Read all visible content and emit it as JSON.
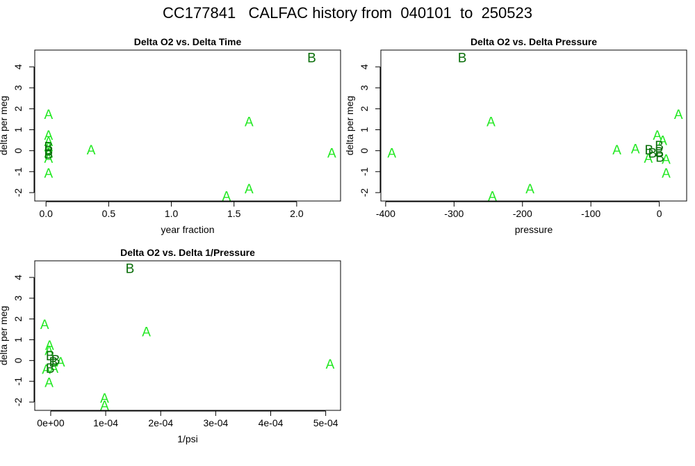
{
  "title": "CC177841   CALFAC history from  040101  to  250523",
  "colors": {
    "A": "#22e822",
    "B": "#0a6e0a"
  },
  "chart_data": [
    {
      "type": "scatter",
      "title": "Delta O2 vs. Delta Time",
      "xlabel": "year fraction",
      "ylabel": "delta per meg",
      "xlim": [
        -0.09,
        2.35
      ],
      "ylim": [
        -2.4,
        4.8
      ],
      "xticks": [
        {
          "v": 0.0,
          "label": "0.0"
        },
        {
          "v": 0.5,
          "label": "0.5"
        },
        {
          "v": 1.0,
          "label": "1.0"
        },
        {
          "v": 1.5,
          "label": "1.5"
        },
        {
          "v": 2.0,
          "label": "2.0"
        }
      ],
      "yticks": [
        {
          "v": -2,
          "label": "-2"
        },
        {
          "v": -1,
          "label": "-1"
        },
        {
          "v": 0,
          "label": "0"
        },
        {
          "v": 1,
          "label": "1"
        },
        {
          "v": 2,
          "label": "2"
        },
        {
          "v": 3,
          "label": "3"
        },
        {
          "v": 4,
          "label": "4"
        }
      ],
      "points": [
        {
          "x": 0.02,
          "y": 1.75,
          "label": "A"
        },
        {
          "x": 0.02,
          "y": 0.75,
          "label": "A"
        },
        {
          "x": 0.02,
          "y": 0.45,
          "label": "A"
        },
        {
          "x": 0.02,
          "y": 0.2,
          "label": "A"
        },
        {
          "x": 0.02,
          "y": -0.1,
          "label": "A"
        },
        {
          "x": 0.02,
          "y": -0.35,
          "label": "A"
        },
        {
          "x": 0.02,
          "y": -1.05,
          "label": "A"
        },
        {
          "x": 0.36,
          "y": 0.05,
          "label": "A"
        },
        {
          "x": 1.62,
          "y": 1.4,
          "label": "A"
        },
        {
          "x": 1.44,
          "y": -2.15,
          "label": "A"
        },
        {
          "x": 1.62,
          "y": -1.8,
          "label": "A"
        },
        {
          "x": 2.28,
          "y": -0.1,
          "label": "A"
        },
        {
          "x": 0.02,
          "y": 0.2,
          "label": "B"
        },
        {
          "x": 0.02,
          "y": 0.0,
          "label": "B"
        },
        {
          "x": 0.02,
          "y": -0.15,
          "label": "B"
        },
        {
          "x": 2.12,
          "y": 4.45,
          "label": "B"
        }
      ]
    },
    {
      "type": "scatter",
      "title": "Delta O2 vs. Delta Pressure",
      "xlabel": "pressure",
      "ylabel": "delta per meg",
      "xlim": [
        -407,
        40
      ],
      "ylim": [
        -2.4,
        4.8
      ],
      "xticks": [
        {
          "v": -400,
          "label": "-400"
        },
        {
          "v": -300,
          "label": "-300"
        },
        {
          "v": -200,
          "label": "-200"
        },
        {
          "v": -100,
          "label": "-100"
        },
        {
          "v": 0,
          "label": "0"
        }
      ],
      "yticks": [
        {
          "v": -2,
          "label": "-2"
        },
        {
          "v": -1,
          "label": "-1"
        },
        {
          "v": 0,
          "label": "0"
        },
        {
          "v": 1,
          "label": "1"
        },
        {
          "v": 2,
          "label": "2"
        },
        {
          "v": 3,
          "label": "3"
        },
        {
          "v": 4,
          "label": "4"
        }
      ],
      "points": [
        {
          "x": -391,
          "y": -0.1,
          "label": "A"
        },
        {
          "x": -246,
          "y": 1.4,
          "label": "A"
        },
        {
          "x": -244,
          "y": -2.15,
          "label": "A"
        },
        {
          "x": -189,
          "y": -1.8,
          "label": "A"
        },
        {
          "x": -62,
          "y": 0.05,
          "label": "A"
        },
        {
          "x": -35,
          "y": 0.1,
          "label": "A"
        },
        {
          "x": -16,
          "y": -0.35,
          "label": "A"
        },
        {
          "x": -3,
          "y": 0.75,
          "label": "A"
        },
        {
          "x": 5,
          "y": 0.5,
          "label": "A"
        },
        {
          "x": 10,
          "y": -0.4,
          "label": "A"
        },
        {
          "x": 10,
          "y": -1.05,
          "label": "A"
        },
        {
          "x": 28,
          "y": 1.75,
          "label": "A"
        },
        {
          "x": -288,
          "y": 4.45,
          "label": "B"
        },
        {
          "x": -15,
          "y": 0.05,
          "label": "B"
        },
        {
          "x": -10,
          "y": -0.1,
          "label": "B"
        },
        {
          "x": 0,
          "y": 0.25,
          "label": "B"
        },
        {
          "x": 0,
          "y": -0.05,
          "label": "B"
        },
        {
          "x": 1,
          "y": -0.3,
          "label": "B"
        }
      ]
    },
    {
      "type": "scatter",
      "title": "Delta O2 vs. Delta 1/Pressure",
      "xlabel": "1/psi",
      "ylabel": "delta per meg",
      "xlim": [
        -2.9e-05,
        0.000527
      ],
      "ylim": [
        -2.4,
        4.8
      ],
      "xticks": [
        {
          "v": 0,
          "label": "0e+00"
        },
        {
          "v": 0.0001,
          "label": "1e-04"
        },
        {
          "v": 0.0002,
          "label": "2e-04"
        },
        {
          "v": 0.0003,
          "label": "3e-04"
        },
        {
          "v": 0.0004,
          "label": "4e-04"
        },
        {
          "v": 0.0005,
          "label": "5e-04"
        }
      ],
      "yticks": [
        {
          "v": -2,
          "label": "-2"
        },
        {
          "v": -1,
          "label": "-1"
        },
        {
          "v": 0,
          "label": "0"
        },
        {
          "v": 1,
          "label": "1"
        },
        {
          "v": 2,
          "label": "2"
        },
        {
          "v": 3,
          "label": "3"
        },
        {
          "v": 4,
          "label": "4"
        }
      ],
      "points": [
        {
          "x": -1.1e-05,
          "y": 1.75,
          "label": "A"
        },
        {
          "x": -2e-06,
          "y": 0.75,
          "label": "A"
        },
        {
          "x": -3e-06,
          "y": 0.5,
          "label": "A"
        },
        {
          "x": -8e-06,
          "y": -0.4,
          "label": "A"
        },
        {
          "x": -3e-06,
          "y": -1.05,
          "label": "A"
        },
        {
          "x": 6e-06,
          "y": -0.35,
          "label": "A"
        },
        {
          "x": 1.8e-05,
          "y": -0.05,
          "label": "A"
        },
        {
          "x": 9.8e-05,
          "y": -1.8,
          "label": "A"
        },
        {
          "x": 9.8e-05,
          "y": -2.15,
          "label": "A"
        },
        {
          "x": 0.000174,
          "y": 1.4,
          "label": "A"
        },
        {
          "x": 0.000508,
          "y": -0.15,
          "label": "A"
        },
        {
          "x": 0.000144,
          "y": 4.45,
          "label": "B"
        },
        {
          "x": -1e-06,
          "y": 0.25,
          "label": "B"
        },
        {
          "x": 5e-06,
          "y": -0.05,
          "label": "B"
        },
        {
          "x": 9e-06,
          "y": 0.05,
          "label": "B"
        },
        {
          "x": -1e-06,
          "y": -0.35,
          "label": "B"
        }
      ]
    }
  ]
}
